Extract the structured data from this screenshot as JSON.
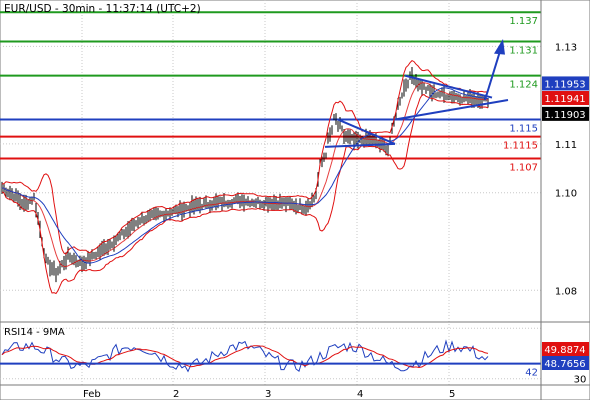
{
  "chart_data": [
    {
      "type": "line",
      "title": "EUR/USD - 30min - 11:37:14 (UTC+2)",
      "ylim": [
        1.0735,
        1.1395
      ],
      "ytick_labels": [
        "1.13",
        "1.11",
        "1.10",
        "1.08"
      ],
      "ytick_values": [
        1.13,
        1.11,
        1.1,
        1.08
      ],
      "xtick_labels": [
        "Feb",
        "2",
        "3",
        "4",
        "5"
      ],
      "grid": true,
      "price_tags": [
        {
          "label": "1.11953",
          "value": 1.11953,
          "color": "#1f3fbf"
        },
        {
          "label": "1.11941",
          "value": 1.11941,
          "color": "#e01010"
        },
        {
          "label": "1.11903",
          "value": 1.11903,
          "color": "#000000"
        }
      ],
      "levels": [
        {
          "label": "1.137",
          "value": 1.137,
          "color": "#1f9a1f"
        },
        {
          "label": "1.131",
          "value": 1.131,
          "color": "#1f9a1f"
        },
        {
          "label": "1.124",
          "value": 1.124,
          "color": "#1f9a1f"
        },
        {
          "label": "1.115",
          "value": 1.115,
          "color": "#1f3fbf"
        },
        {
          "label": "1.1115",
          "value": 1.1115,
          "color": "#e01010"
        },
        {
          "label": "1.107",
          "value": 1.107,
          "color": "#e01010"
        }
      ],
      "colors": {
        "price": "#000000",
        "bollinger": "#e01010",
        "ma": "#1f3fbf",
        "projection": "#1f3fbf",
        "grid": "#c8c8c8"
      }
    },
    {
      "type": "line",
      "title": "RSI14 - 9MA",
      "ylim": [
        25,
        75
      ],
      "ytick_labels": [
        "30"
      ],
      "ytick_values": [
        30
      ],
      "level": {
        "label": "42",
        "value": 42
      },
      "value_tags": [
        {
          "label": "49.8874",
          "value": 49.8874,
          "color": "#e01010"
        },
        {
          "label": "48.7656",
          "value": 48.7656,
          "color": "#1f3fbf"
        }
      ]
    }
  ]
}
